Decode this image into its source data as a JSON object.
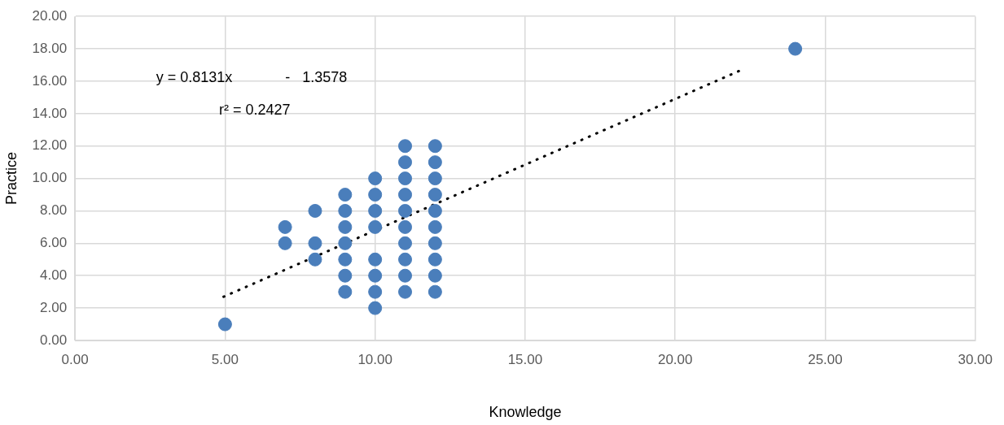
{
  "chart_data": {
    "type": "scatter",
    "xlabel": "Knowledge",
    "ylabel": "Practice",
    "series": [
      {
        "type": "scatter",
        "color": "#4a7ebb",
        "marker": "circle",
        "x": [
          5,
          7,
          7,
          8,
          8,
          8,
          9,
          9,
          9,
          9,
          9,
          9,
          9,
          10,
          10,
          10,
          10,
          10,
          10,
          10,
          10,
          11,
          11,
          11,
          11,
          11,
          11,
          11,
          11,
          11,
          11,
          12,
          12,
          12,
          12,
          12,
          12,
          12,
          12,
          12,
          12,
          24
        ],
        "values": [
          1,
          6,
          7,
          5,
          6,
          8,
          3,
          4,
          5,
          6,
          7,
          8,
          9,
          2,
          3,
          4,
          5,
          7,
          8,
          9,
          10,
          3,
          4,
          5,
          6,
          7,
          8,
          9,
          10,
          11,
          12,
          3,
          4,
          5,
          6,
          7,
          8,
          9,
          10,
          11,
          12,
          18
        ]
      },
      {
        "type": "line",
        "color": "#000000",
        "line_style": "dotted",
        "marker": "none",
        "x": [
          4.95,
          22.15
        ],
        "values": [
          2.7,
          16.65
        ]
      }
    ],
    "xlim": [
      0,
      30
    ],
    "xticks": [
      {
        "value": 0,
        "label": "0.00"
      },
      {
        "value": 5,
        "label": "5.00"
      },
      {
        "value": 10,
        "label": "10.00"
      },
      {
        "value": 15,
        "label": "15.00"
      },
      {
        "value": 20,
        "label": "20.00"
      },
      {
        "value": 25,
        "label": "25.00"
      },
      {
        "value": 30,
        "label": "30.00"
      }
    ],
    "ylim": [
      0,
      20
    ],
    "yticks": [
      {
        "value": 0,
        "label": "0.00"
      },
      {
        "value": 2,
        "label": "2.00"
      },
      {
        "value": 4,
        "label": "4.00"
      },
      {
        "value": 6,
        "label": "6.00"
      },
      {
        "value": 8,
        "label": "8.00"
      },
      {
        "value": 10,
        "label": "10.00"
      },
      {
        "value": 12,
        "label": "12.00"
      },
      {
        "value": 14,
        "label": "14.00"
      },
      {
        "value": 16,
        "label": "16.00"
      },
      {
        "value": 18,
        "label": "18.00"
      },
      {
        "value": 20,
        "label": "20.00"
      }
    ],
    "grid": true,
    "legend": false,
    "annotations": [
      "y = 0.8131x             -   1.3578",
      "r² = 0.2427"
    ]
  }
}
